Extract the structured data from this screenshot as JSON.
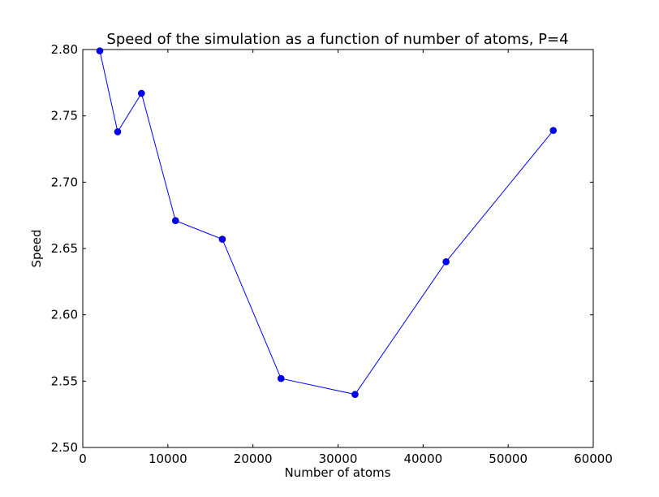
{
  "chart_data": {
    "type": "line",
    "title": "Speed of the simulation as a function of number of atoms, P=4",
    "xlabel": "Number of atoms",
    "ylabel": "Speed",
    "xlim": [
      0,
      60000
    ],
    "ylim": [
      2.5,
      2.8
    ],
    "xticks": [
      0,
      10000,
      20000,
      30000,
      40000,
      50000,
      60000
    ],
    "xtick_labels": [
      "0",
      "10000",
      "20000",
      "30000",
      "40000",
      "50000",
      "60000"
    ],
    "yticks": [
      2.5,
      2.55,
      2.6,
      2.65,
      2.7,
      2.75,
      2.8
    ],
    "ytick_labels": [
      "2.50",
      "2.55",
      "2.60",
      "2.65",
      "2.70",
      "2.75",
      "2.80"
    ],
    "grid": false,
    "series": [
      {
        "color": "#0000ff",
        "marker": "circle",
        "x": [
          2000,
          4100,
          6900,
          10900,
          16400,
          23300,
          32000,
          42700,
          55300
        ],
        "y": [
          2.799,
          2.738,
          2.767,
          2.671,
          2.657,
          2.552,
          2.54,
          2.64,
          2.739
        ]
      }
    ]
  }
}
